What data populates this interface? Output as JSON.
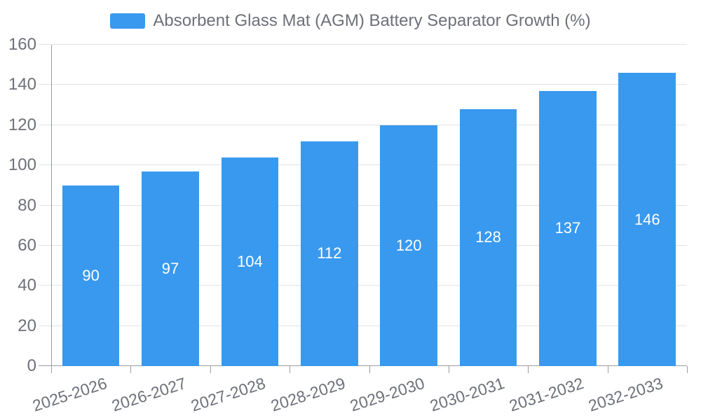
{
  "chart_data": {
    "type": "bar",
    "title": "Absorbent Glass Mat (AGM) Battery Separator Growth (%)",
    "categories": [
      "2025-2026",
      "2026-2027",
      "2027-2028",
      "2028-2029",
      "2029-2030",
      "2030-2031",
      "2031-2032",
      "2032-2033"
    ],
    "values": [
      90,
      97,
      104,
      112,
      120,
      128,
      137,
      146
    ],
    "xlabel": "",
    "ylabel": "",
    "ylim": [
      0,
      160
    ],
    "yticks": [
      0,
      20,
      40,
      60,
      80,
      100,
      120,
      140,
      160
    ],
    "grid": true,
    "legend_position": "top",
    "bar_labels_inside": true
  },
  "legend": {
    "label": "Absorbent Glass Mat (AGM) Battery Separator Growth (%)"
  },
  "colors": {
    "bar": "#3999EE",
    "bar_value_label": "#FFFFFF",
    "axis_text": "#6E7079",
    "grid_line": "#E0E3E8",
    "axis_line": "#999DA3",
    "background": "#FFFFFF"
  }
}
